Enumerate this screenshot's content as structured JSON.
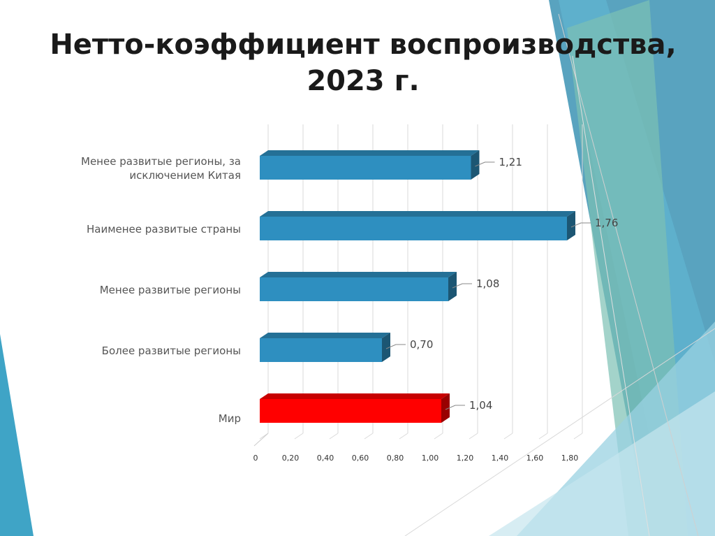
{
  "slide": {
    "title_line1": "Нетто-коэффициент воспроизводства,",
    "title_line2": "2023 г."
  },
  "colors": {
    "bar": "#2e8fc0",
    "bar_highlight": "#ff0000",
    "accent_teal": "#3fa4c6",
    "accent_green": "#7cc0b4"
  },
  "chart_data": {
    "type": "bar",
    "orientation": "horizontal",
    "style": "3d",
    "categories": [
      "Менее развитые регионы, за исключением Китая",
      "Наименее развитые страны",
      "Менее развитые регионы",
      "Более развитые регионы",
      "Мир"
    ],
    "category_lines": [
      [
        "Менее развитые регионы, за",
        "исключением Китая"
      ],
      [
        "Наименее развитые страны"
      ],
      [
        "Менее развитые регионы"
      ],
      [
        "Более развитые регионы"
      ],
      [
        "Мир"
      ]
    ],
    "values": [
      1.21,
      1.76,
      1.08,
      0.7,
      1.04
    ],
    "value_labels": [
      "1,21",
      "1,76",
      "1,08",
      "0,70",
      "1,04"
    ],
    "highlight_index": 4,
    "xlim": [
      0,
      1.8
    ],
    "xticks": [
      0,
      0.2,
      0.4,
      0.6,
      0.8,
      1.0,
      1.2,
      1.4,
      1.6,
      1.8
    ],
    "xtick_labels": [
      "0",
      "0,20",
      "0,40",
      "0,60",
      "0,80",
      "1,00",
      "1,20",
      "1,40",
      "1,60",
      "1,80"
    ],
    "grid": true,
    "legend": "none"
  }
}
